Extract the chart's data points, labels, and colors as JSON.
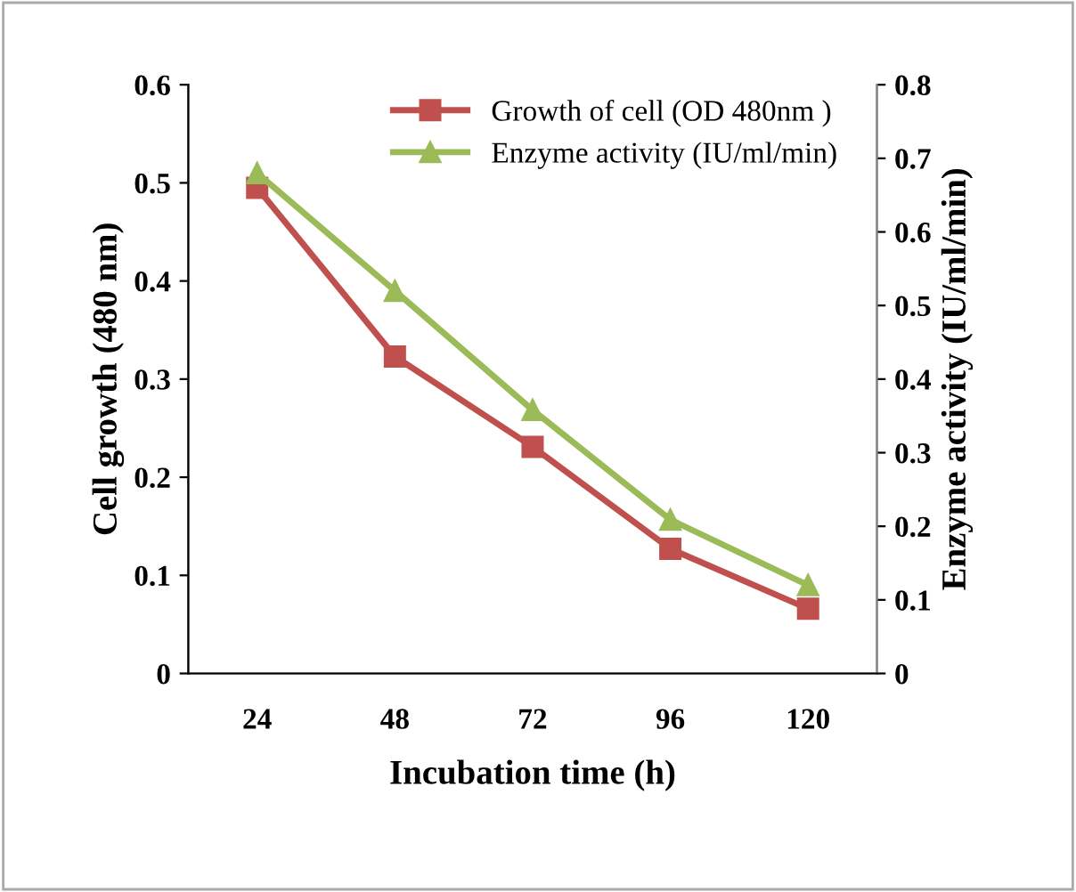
{
  "chart_data": {
    "type": "line",
    "xlabel": "Incubation time (h)",
    "ylabel": "Cell growth (480 nm)",
    "y2label": "Enzyme activity (IU/ml/min)",
    "categories": [
      "24",
      "48",
      "72",
      "96",
      "120"
    ],
    "series": [
      {
        "name": "Growth of cell (OD 480nm )",
        "color": "#c0504d",
        "marker": "square",
        "values": [
          0.495,
          0.323,
          0.231,
          0.127,
          0.066
        ]
      },
      {
        "name": "Enzyme activity (IU/ml/min)",
        "color": "#9bbb59",
        "marker": "triangle",
        "axis": "y2",
        "values": [
          0.68,
          0.52,
          0.358,
          0.209,
          0.12
        ]
      }
    ],
    "ylim": [
      0,
      0.6
    ],
    "yticks": [
      0,
      0.1,
      0.2,
      0.3,
      0.4,
      0.5,
      0.6
    ],
    "y2lim": [
      0,
      0.8
    ],
    "y2ticks": [
      0,
      0.1,
      0.2,
      0.3,
      0.4,
      0.5,
      0.6,
      0.7,
      0.8
    ],
    "grid": false,
    "legend": "top",
    "line_style": "solid"
  }
}
